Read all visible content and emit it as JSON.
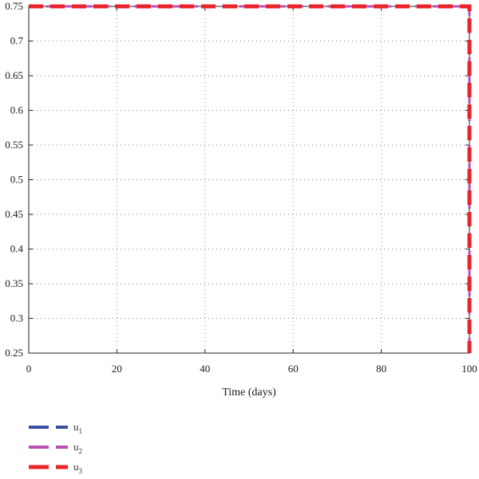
{
  "chart_data": {
    "type": "line",
    "title": "",
    "xlabel": "Time (days)",
    "ylabel": "",
    "xlim": [
      0,
      100
    ],
    "ylim": [
      0.25,
      0.75
    ],
    "x_ticks": [
      0,
      20,
      40,
      60,
      80,
      100
    ],
    "x_tick_labels": [
      "0",
      "20",
      "40",
      "60",
      "80",
      "100"
    ],
    "y_ticks": [
      0.25,
      0.3,
      0.35,
      0.4,
      0.45,
      0.5,
      0.55,
      0.6,
      0.65,
      0.7,
      0.75
    ],
    "y_tick_labels": [
      "0.25",
      "0.3",
      "0.35",
      "0.4",
      "0.45",
      "0.5",
      "0.55",
      "0.6",
      "0.65",
      "0.7",
      "0.75"
    ],
    "grid": true,
    "legend_position": "below-left",
    "series": [
      {
        "name": "u",
        "subscript": "1",
        "color": "#3b4fa0",
        "style": "dashed",
        "x": [
          0,
          100,
          100
        ],
        "y": [
          0.75,
          0.75,
          0.25
        ]
      },
      {
        "name": "u",
        "subscript": "2",
        "color": "#b94fb3",
        "style": "dashed",
        "x": [
          0,
          100,
          100
        ],
        "y": [
          0.75,
          0.75,
          0.25
        ]
      },
      {
        "name": "u",
        "subscript": "3",
        "color": "#e8232a",
        "style": "dashed",
        "x": [
          0,
          100,
          100
        ],
        "y": [
          0.75,
          0.75,
          0.25
        ]
      }
    ]
  }
}
